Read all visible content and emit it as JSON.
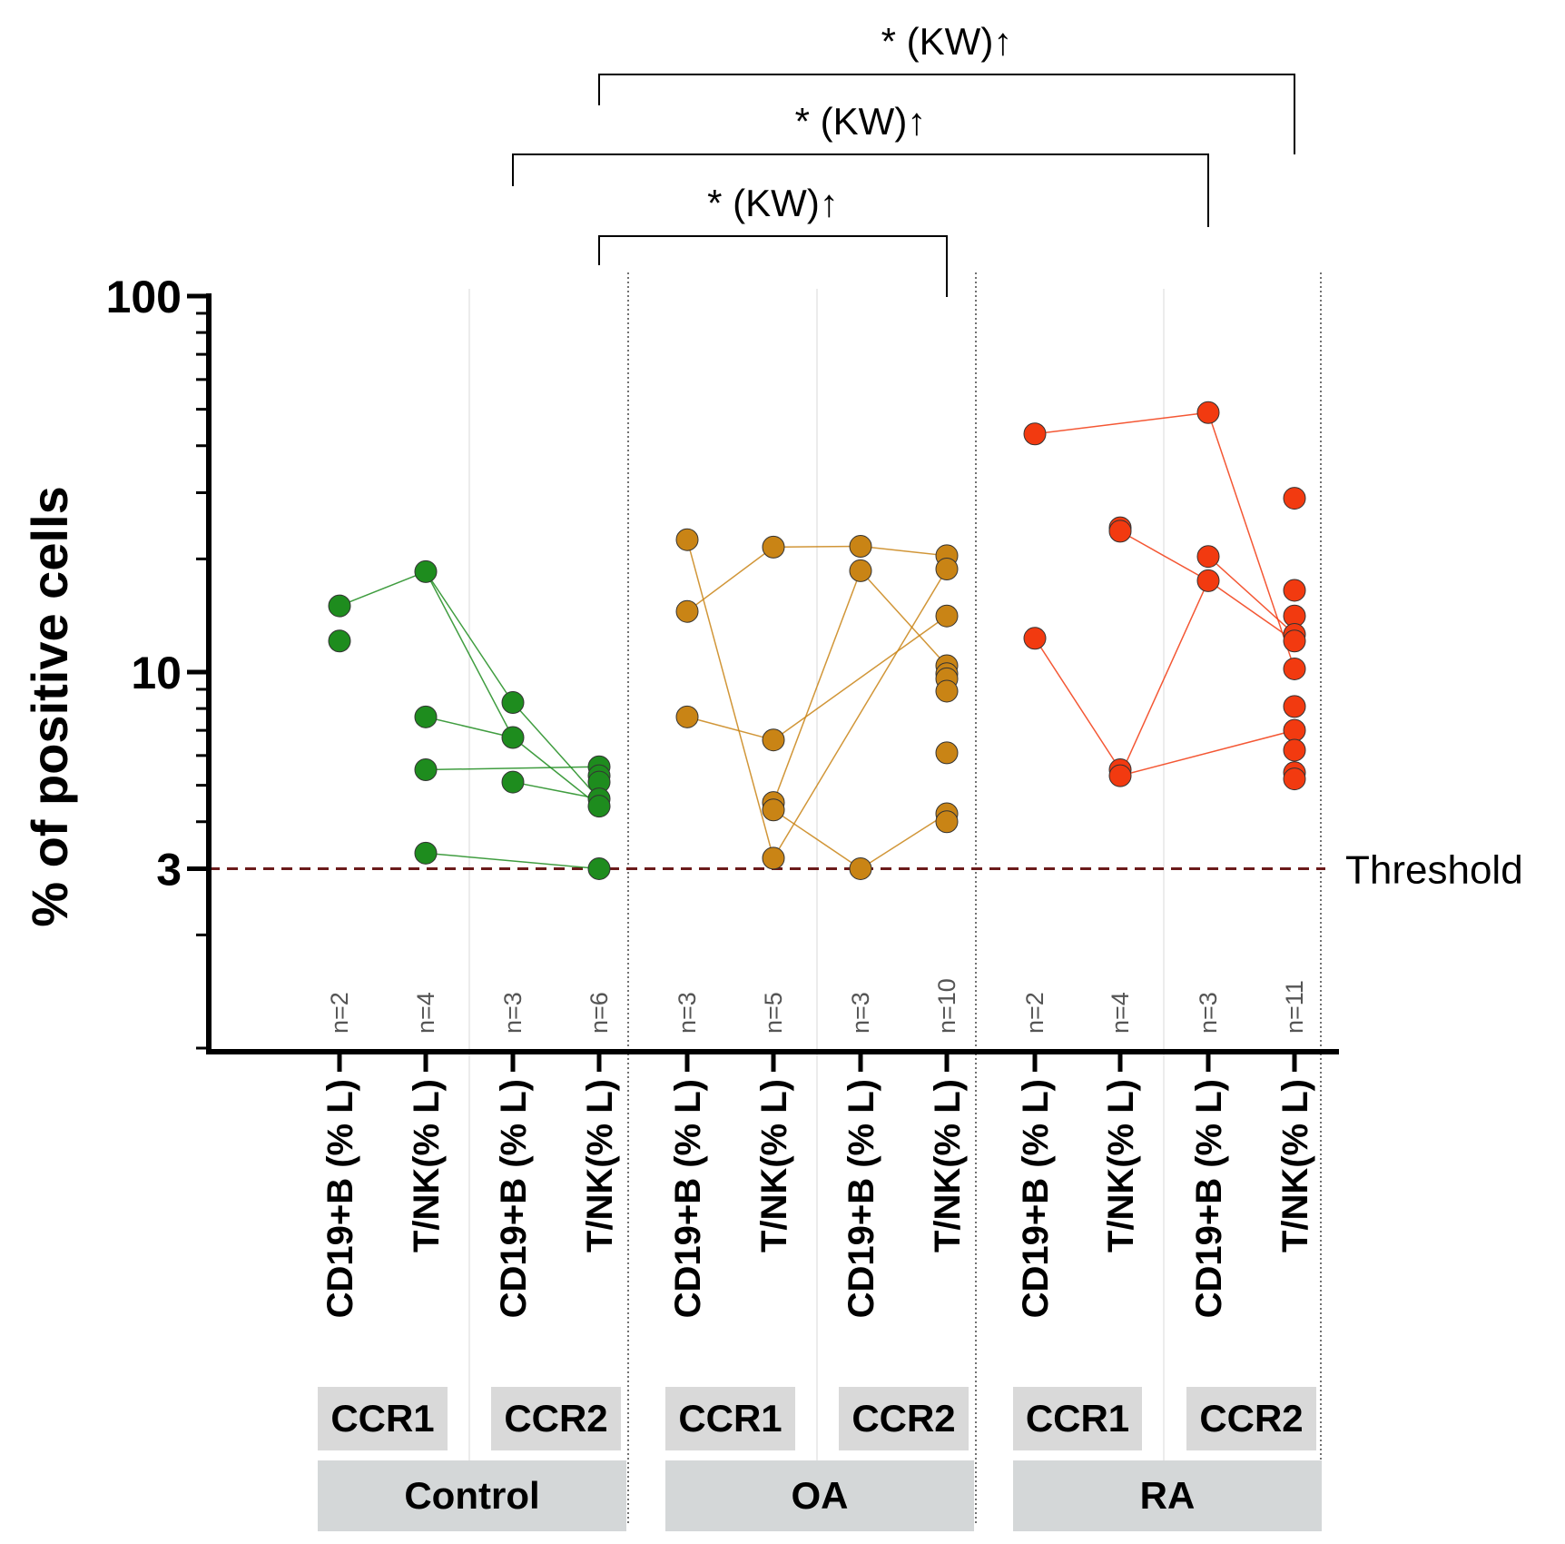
{
  "chart_data": {
    "type": "scatter",
    "title": "",
    "ylabel": "% of positive cells",
    "xlabel": "",
    "yscale": "log",
    "ylim": [
      1,
      100
    ],
    "y_ticks": [
      {
        "value": 100,
        "label": "100"
      },
      {
        "value": 10,
        "label": "10"
      },
      {
        "value": 3,
        "label": "3"
      }
    ],
    "grid": false,
    "threshold": {
      "value": 3,
      "label": "Threshold",
      "color": "#6b1a1a"
    },
    "categories": [
      {
        "label": "CD19+B (% L)",
        "group": "Control",
        "receptor": "CCR1",
        "n": "n=2",
        "color": "#1e8c1e",
        "values": [
          15.0,
          12.1
        ]
      },
      {
        "label": "T/NK(% L)",
        "group": "Control",
        "receptor": "CCR1",
        "n": "n=4",
        "color": "#1e8c1e",
        "values": [
          18.5,
          7.6,
          5.5,
          3.3
        ]
      },
      {
        "label": "CD19+B (% L)",
        "group": "Control",
        "receptor": "CCR2",
        "n": "n=3",
        "color": "#1e8c1e",
        "values": [
          8.3,
          6.7,
          5.1
        ]
      },
      {
        "label": "T/NK(% L)",
        "group": "Control",
        "receptor": "CCR2",
        "n": "n=6",
        "color": "#1e8c1e",
        "values": [
          5.6,
          5.3,
          5.1,
          4.6,
          4.4,
          3.0
        ]
      },
      {
        "label": "CD19+B (% L)",
        "group": "OA",
        "receptor": "CCR1",
        "n": "n=3",
        "color": "#c98415",
        "values": [
          22.5,
          14.5,
          7.6
        ]
      },
      {
        "label": "T/NK(% L)",
        "group": "OA",
        "receptor": "CCR1",
        "n": "n=5",
        "color": "#c98415",
        "values": [
          21.5,
          6.6,
          4.5,
          4.3,
          3.2
        ]
      },
      {
        "label": "CD19+B (% L)",
        "group": "OA",
        "receptor": "CCR2",
        "n": "n=3",
        "color": "#c98415",
        "values": [
          21.6,
          18.6,
          3.0
        ]
      },
      {
        "label": "T/NK(% L)",
        "group": "OA",
        "receptor": "CCR2",
        "n": "n=10",
        "color": "#c98415",
        "values": [
          20.4,
          18.8,
          14.1,
          10.4,
          9.9,
          9.6,
          8.9,
          6.1,
          4.2,
          4.0
        ]
      },
      {
        "label": "CD19+B (% L)",
        "group": "RA",
        "receptor": "CCR1",
        "n": "n=2",
        "color": "#f23a10",
        "values": [
          43.0,
          12.3
        ]
      },
      {
        "label": "T/NK(% L)",
        "group": "RA",
        "receptor": "CCR1",
        "n": "n=4",
        "color": "#f23a10",
        "values": [
          24.2,
          23.7,
          5.5,
          5.3
        ]
      },
      {
        "label": "CD19+B (% L)",
        "group": "RA",
        "receptor": "CCR2",
        "n": "n=3",
        "color": "#f23a10",
        "values": [
          49.0,
          20.3,
          17.5
        ]
      },
      {
        "label": "T/NK(% L)",
        "group": "RA",
        "receptor": "CCR2",
        "n": "n=11",
        "color": "#f23a10",
        "values": [
          29.0,
          16.5,
          14.1,
          12.6,
          12.1,
          10.2,
          8.1,
          7.0,
          6.2,
          5.4,
          5.2
        ]
      }
    ],
    "connections": [
      {
        "from_cat": 0,
        "from_val": 15.0,
        "to_cat": 1,
        "to_val": 18.5
      },
      {
        "from_cat": 1,
        "from_val": 18.5,
        "to_cat": 2,
        "to_val": 8.3
      },
      {
        "from_cat": 1,
        "from_val": 18.5,
        "to_cat": 2,
        "to_val": 6.7
      },
      {
        "from_cat": 1,
        "from_val": 7.6,
        "to_cat": 2,
        "to_val": 6.7
      },
      {
        "from_cat": 2,
        "from_val": 8.3,
        "to_cat": 3,
        "to_val": 4.6
      },
      {
        "from_cat": 2,
        "from_val": 6.7,
        "to_cat": 3,
        "to_val": 4.4
      },
      {
        "from_cat": 1,
        "from_val": 5.5,
        "to_cat": 3,
        "to_val": 5.6
      },
      {
        "from_cat": 2,
        "from_val": 5.1,
        "to_cat": 3,
        "to_val": 4.6
      },
      {
        "from_cat": 1,
        "from_val": 3.3,
        "to_cat": 3,
        "to_val": 3.0
      },
      {
        "from_cat": 4,
        "from_val": 14.5,
        "to_cat": 5,
        "to_val": 21.5
      },
      {
        "from_cat": 4,
        "from_val": 22.5,
        "to_cat": 5,
        "to_val": 3.2
      },
      {
        "from_cat": 4,
        "from_val": 7.6,
        "to_cat": 5,
        "to_val": 6.6
      },
      {
        "from_cat": 5,
        "from_val": 21.5,
        "to_cat": 6,
        "to_val": 21.6
      },
      {
        "from_cat": 5,
        "from_val": 6.6,
        "to_cat": 7,
        "to_val": 14.1
      },
      {
        "from_cat": 5,
        "from_val": 4.5,
        "to_cat": 6,
        "to_val": 18.6
      },
      {
        "from_cat": 5,
        "from_val": 4.3,
        "to_cat": 6,
        "to_val": 3.0
      },
      {
        "from_cat": 5,
        "from_val": 3.2,
        "to_cat": 7,
        "to_val": 18.8
      },
      {
        "from_cat": 6,
        "from_val": 21.6,
        "to_cat": 7,
        "to_val": 20.4
      },
      {
        "from_cat": 6,
        "from_val": 18.6,
        "to_cat": 7,
        "to_val": 10.4
      },
      {
        "from_cat": 6,
        "from_val": 3.0,
        "to_cat": 7,
        "to_val": 4.2
      },
      {
        "from_cat": 8,
        "from_val": 43.0,
        "to_cat": 10,
        "to_val": 49.0
      },
      {
        "from_cat": 8,
        "from_val": 12.3,
        "to_cat": 9,
        "to_val": 5.5
      },
      {
        "from_cat": 9,
        "from_val": 23.7,
        "to_cat": 10,
        "to_val": 17.5
      },
      {
        "from_cat": 9,
        "from_val": 5.3,
        "to_cat": 10,
        "to_val": 17.5
      },
      {
        "from_cat": 9,
        "from_val": 5.3,
        "to_cat": 11,
        "to_val": 7.0
      },
      {
        "from_cat": 10,
        "from_val": 49.0,
        "to_cat": 11,
        "to_val": 10.2
      },
      {
        "from_cat": 10,
        "from_val": 20.3,
        "to_cat": 11,
        "to_val": 12.6
      },
      {
        "from_cat": 10,
        "from_val": 17.5,
        "to_cat": 11,
        "to_val": 12.1
      }
    ],
    "annotations": [
      {
        "text": "* (KW)↑",
        "from_cat": 3,
        "to_cat": 7,
        "level": 1
      },
      {
        "text": "* (KW)↑",
        "from_cat": 2,
        "to_cat": 10,
        "level": 2
      },
      {
        "text": "* (KW)↑",
        "from_cat": 3,
        "to_cat": 11,
        "level": 3
      }
    ],
    "receptor_boxes": [
      {
        "label": "CCR1",
        "from_cat": 0,
        "to_cat": 1
      },
      {
        "label": "CCR2",
        "from_cat": 2,
        "to_cat": 3
      },
      {
        "label": "CCR1",
        "from_cat": 4,
        "to_cat": 5
      },
      {
        "label": "CCR2",
        "from_cat": 6,
        "to_cat": 7
      },
      {
        "label": "CCR1",
        "from_cat": 8,
        "to_cat": 9
      },
      {
        "label": "CCR2",
        "from_cat": 10,
        "to_cat": 11
      }
    ],
    "group_boxes": [
      {
        "label": "Control",
        "from_cat": 0,
        "to_cat": 3
      },
      {
        "label": "OA",
        "from_cat": 4,
        "to_cat": 7
      },
      {
        "label": "RA",
        "from_cat": 8,
        "to_cat": 11
      }
    ]
  }
}
